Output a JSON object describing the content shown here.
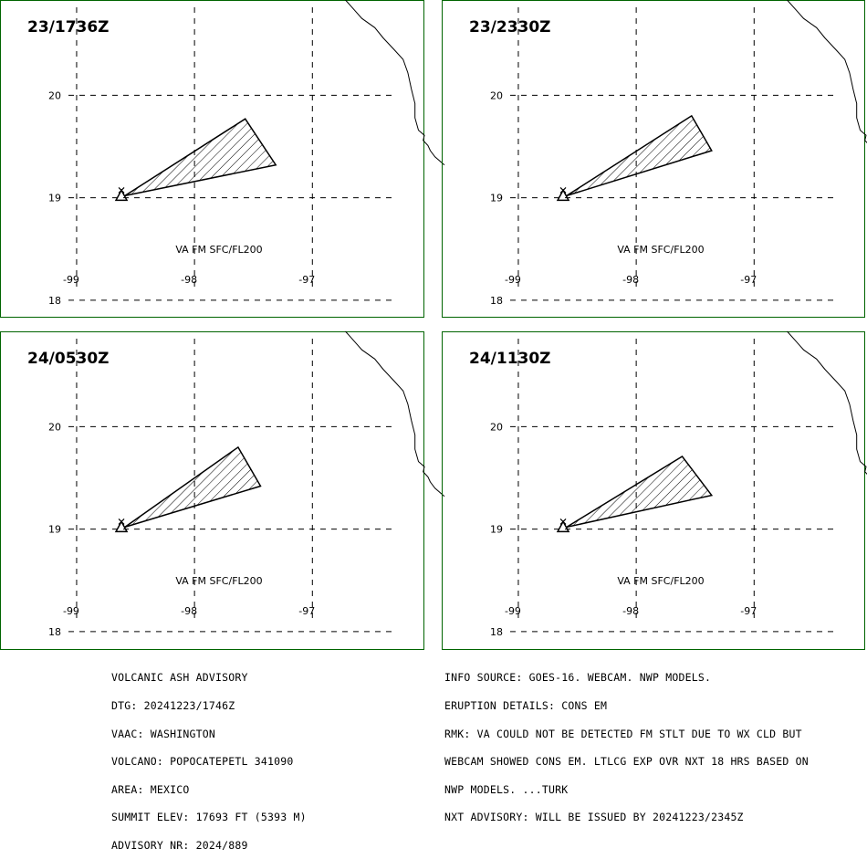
{
  "panels": [
    {
      "time": "23/1736Z",
      "va_label": "VA FM SFC/FL200",
      "ash_polygon": [
        [
          -98.59,
          19.02
        ],
        [
          -97.31,
          19.32
        ],
        [
          -97.57,
          19.77
        ]
      ]
    },
    {
      "time": "23/2330Z",
      "va_label": "VA FM SFC/FL200",
      "ash_polygon": [
        [
          -98.59,
          19.02
        ],
        [
          -97.36,
          19.46
        ],
        [
          -97.53,
          19.8
        ]
      ]
    },
    {
      "time": "24/0530Z",
      "va_label": "VA FM SFC/FL200",
      "ash_polygon": [
        [
          -98.59,
          19.02
        ],
        [
          -97.44,
          19.42
        ],
        [
          -97.63,
          19.8
        ]
      ]
    },
    {
      "time": "24/1130Z",
      "va_label": "VA FM SFC/FL200",
      "ash_polygon": [
        [
          -98.59,
          19.02
        ],
        [
          -97.36,
          19.33
        ],
        [
          -97.61,
          19.71
        ]
      ]
    }
  ],
  "map": {
    "lon_range": [
      -99.65,
      -96.05
    ],
    "lat_range": [
      17.83,
      20.93
    ],
    "lat_ticks": [
      "20",
      "19",
      "18"
    ],
    "lon_ticks": [
      "-99",
      "-98",
      "-97"
    ],
    "volcano": [
      -98.62,
      19.02
    ],
    "coastline": [
      [
        -96.72,
        20.93
      ],
      [
        -96.65,
        20.84
      ],
      [
        -96.58,
        20.75
      ],
      [
        -96.47,
        20.66
      ],
      [
        -96.4,
        20.56
      ],
      [
        -96.31,
        20.45
      ],
      [
        -96.23,
        20.35
      ],
      [
        -96.19,
        20.22
      ],
      [
        -96.16,
        20.06
      ],
      [
        -96.13,
        19.92
      ],
      [
        -96.13,
        19.78
      ],
      [
        -96.1,
        19.66
      ],
      [
        -96.05,
        19.61
      ],
      [
        -96.06,
        19.56
      ],
      [
        -96.02,
        19.51
      ],
      [
        -96.0,
        19.46
      ],
      [
        -95.96,
        19.4
      ],
      [
        -95.88,
        19.32
      ]
    ]
  },
  "advisory_left": [
    "VOLCANIC ASH ADVISORY",
    "DTG: 20241223/1746Z",
    "VAAC: WASHINGTON",
    "VOLCANO: POPOCATEPETL 341090",
    "AREA: MEXICO",
    "SUMMIT ELEV: 17693 FT (5393 M)",
    "ADVISORY NR: 2024/889"
  ],
  "advisory_right": [
    "INFO SOURCE: GOES-16. WEBCAM. NWP MODELS.",
    "ERUPTION DETAILS: CONS EM",
    "RMK: VA COULD NOT BE DETECTED FM STLT DUE TO WX CLD BUT",
    "WEBCAM SHOWED CONS EM. LTLCG EXP OVR NXT 18 HRS BASED ON",
    "NWP MODELS. ...TURK",
    "NXT ADVISORY: WILL BE ISSUED BY 20241223/2345Z"
  ],
  "colors": {
    "frame": "#006400",
    "grid": "#000000",
    "ash": "#000000"
  }
}
